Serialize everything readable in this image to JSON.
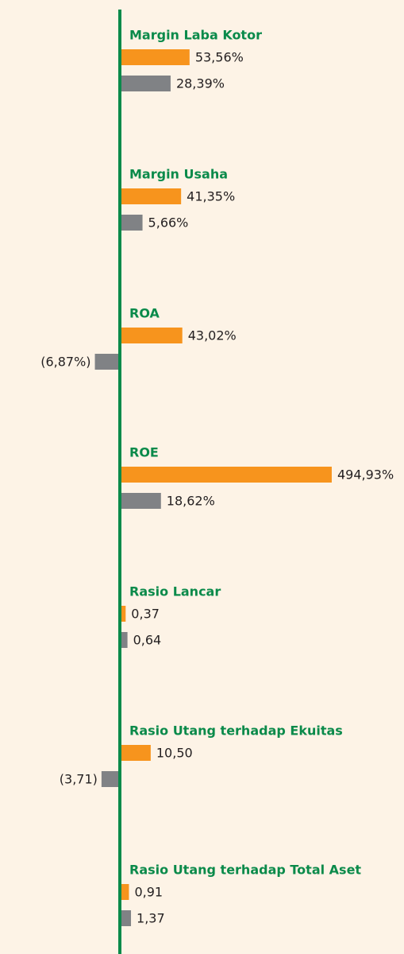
{
  "chart_data": {
    "type": "bar",
    "categories": [
      "Margin Laba Kotor",
      "Margin Usaha",
      "ROA",
      "ROE",
      "Rasio Lancar",
      "Rasio Utang terhadap Ekuitas",
      "Rasio Utang terhadap Total Aset"
    ],
    "series": [
      {
        "color": "#f7941d",
        "values": [
          53.56,
          41.35,
          43.02,
          494.93,
          0.37,
          10.5,
          0.91
        ],
        "value_labels": [
          "53,56%",
          "41,35%",
          "43,02%",
          "494,93%",
          "0,37",
          "10,50",
          "0,91"
        ]
      },
      {
        "color": "#808285",
        "values": [
          28.39,
          5.66,
          -6.87,
          18.62,
          0.64,
          -3.71,
          1.37
        ],
        "value_labels": [
          "28,39%",
          "5,66%",
          "(6,87%)",
          "18,62%",
          "0,64",
          "(3,71)",
          "1,37"
        ]
      }
    ]
  }
}
